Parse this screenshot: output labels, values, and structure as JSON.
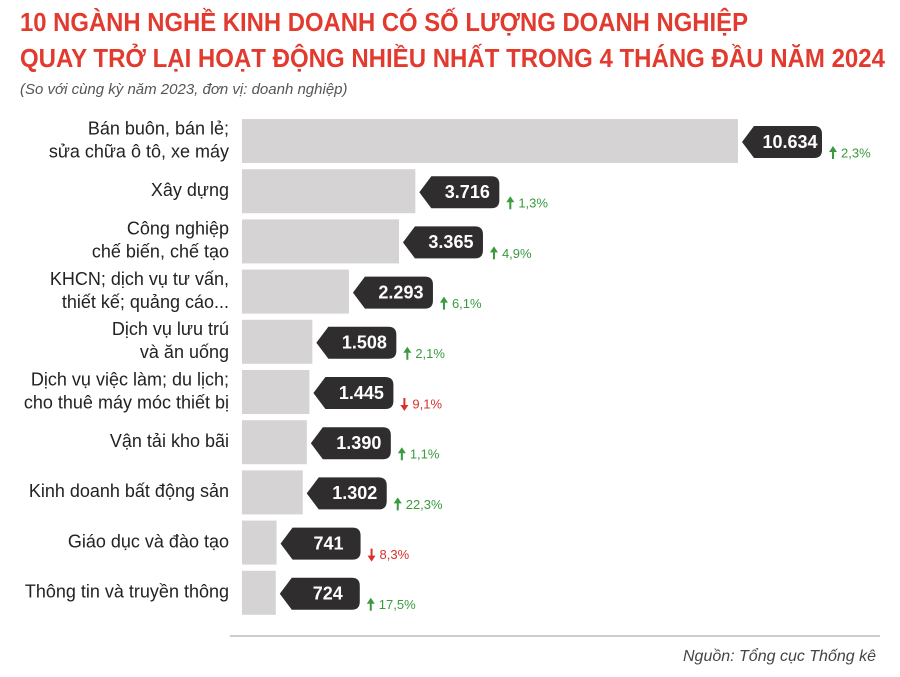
{
  "chart_data": {
    "type": "hbar",
    "title": [
      "10 NGÀNH NGHỀ KINH DOANH CÓ SỐ LƯỢNG DOANH NGHIỆP",
      "QUAY TRỞ LẠI HOẠT ĐỘNG NHIỀU NHẤT TRONG 4 THÁNG ĐẦU NĂM 2024"
    ],
    "subtitle": "(So với cùng kỳ năm 2023, đơn vị: doanh nghiệp)",
    "source": "Nguồn: Tổng cục Thống kê",
    "categories": [
      [
        "Bán buôn, bán lẻ;",
        "sửa chữa ô tô, xe máy"
      ],
      [
        "Xây dựng"
      ],
      [
        "Công nghiệp",
        "chế biến, chế tạo"
      ],
      [
        "KHCN; dịch vụ tư vấn,",
        "thiết kế; quảng cáo..."
      ],
      [
        "Dịch vụ lưu trú",
        "và ăn uống"
      ],
      [
        "Dịch vụ việc làm; du lịch;",
        "cho thuê máy móc thiết bị"
      ],
      [
        "Vận tải kho bãi"
      ],
      [
        "Kinh doanh bất động sản"
      ],
      [
        "Giáo dục và đào tạo"
      ],
      [
        "Thông tin và truyền thông"
      ]
    ],
    "values": [
      10634,
      3716,
      3365,
      2293,
      1508,
      1445,
      1390,
      1302,
      741,
      724
    ],
    "value_labels": [
      "10.634",
      "3.716",
      "3.365",
      "2.293",
      "1.508",
      "1.445",
      "1.390",
      "1.302",
      "741",
      "724"
    ],
    "changes": [
      2.3,
      1.3,
      4.9,
      6.1,
      2.1,
      -9.1,
      1.1,
      22.3,
      -8.3,
      17.5
    ],
    "change_labels": [
      "2,3%",
      "1,3%",
      "4,9%",
      "6,1%",
      "2,1%",
      "9,1%",
      "1,1%",
      "22,3%",
      "8,3%",
      "17,5%"
    ],
    "color": "#d5d3d4",
    "label_color": "#2f2d2e",
    "up_color": "#3a9a3e",
    "down_color": "#d8322c"
  }
}
